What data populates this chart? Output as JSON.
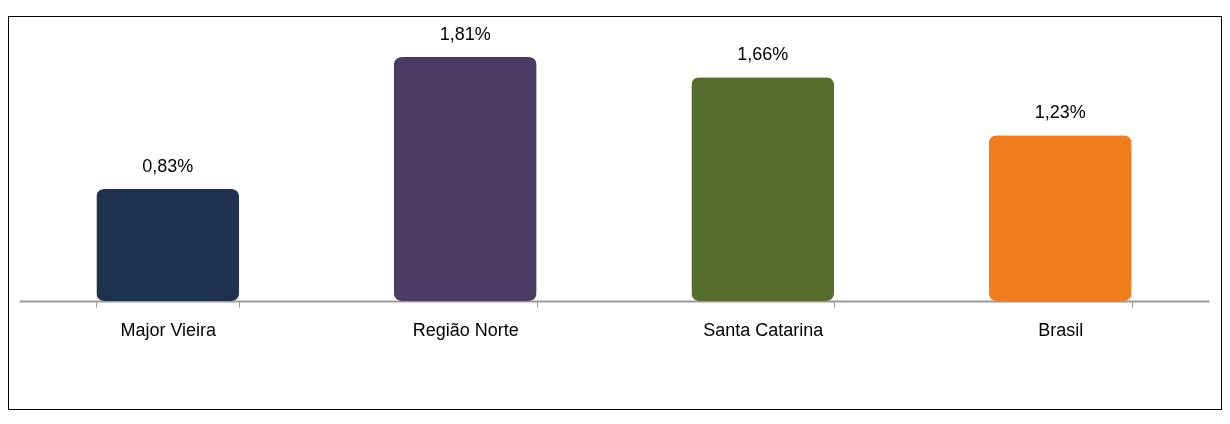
{
  "chart_data": {
    "type": "bar",
    "categories": [
      "Major Vieira",
      "Região Norte",
      "Santa Catarina",
      "Brasil"
    ],
    "values": [
      0.83,
      1.81,
      1.66,
      1.23
    ],
    "value_labels": [
      "0,83%",
      "1,81%",
      "1,66%",
      "1,23%"
    ],
    "colors": [
      "#1e3250",
      "#4a3b62",
      "#566d2d",
      "#f27d1c"
    ],
    "tick_labels": "x"
  }
}
